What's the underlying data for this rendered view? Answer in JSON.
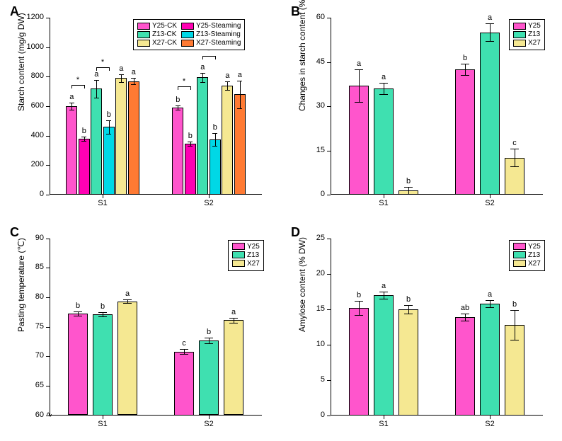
{
  "panels": [
    "A",
    "B",
    "C",
    "D"
  ],
  "panel_letter_fontsize": 18,
  "axis_label_fontsize": 12,
  "tick_fontsize": 11,
  "sig_fontsize": 11,
  "legend_fontsize": 10,
  "colors": {
    "Y25": "#ff55cc",
    "Y25_Steaming": "#ff00b3",
    "Z13": "#3fe0b0",
    "Z13_Steaming": "#00d8e6",
    "X27": "#f5e892",
    "X27_Steaming": "#ff7a33",
    "bar_border": "#000000",
    "axis": "#000000",
    "background": "#ffffff"
  },
  "axis_break_glyph": "∿",
  "A": {
    "ylabel": "Starch content (mg/g DW)",
    "ylim": [
      0,
      1200
    ],
    "ytick_step": 200,
    "categories": [
      "S1",
      "S2"
    ],
    "legend": [
      {
        "label": "Y25-CK",
        "color": "Y25"
      },
      {
        "label": "Y25-Steaming",
        "color": "Y25_Steaming"
      },
      {
        "label": "Z13-CK",
        "color": "Z13"
      },
      {
        "label": "Z13-Steaming",
        "color": "Z13_Steaming"
      },
      {
        "label": "X27-CK",
        "color": "X27"
      },
      {
        "label": "X27-Steaming",
        "color": "X27_Steaming"
      }
    ],
    "series_colors": [
      "Y25",
      "Y25_Steaming",
      "Z13",
      "Z13_Steaming",
      "X27",
      "X27_Steaming"
    ],
    "values": {
      "S1": [
        600,
        380,
        720,
        460,
        790,
        770
      ],
      "S2": [
        590,
        345,
        795,
        375,
        740,
        680
      ]
    },
    "errors": {
      "S1": [
        25,
        15,
        60,
        45,
        25,
        20
      ],
      "S2": [
        15,
        15,
        30,
        45,
        30,
        95
      ]
    },
    "letters": {
      "S1": [
        "a",
        "b",
        "a",
        "b",
        "a",
        "a"
      ],
      "S2": [
        "b",
        "b",
        "a",
        "b",
        "a",
        "a"
      ]
    },
    "sig_pairs": {
      "S1": [
        [
          0,
          1,
          "*"
        ],
        [
          2,
          3,
          "*"
        ]
      ],
      "S2": [
        [
          0,
          1,
          "*"
        ],
        [
          2,
          3,
          "*"
        ]
      ]
    },
    "bar_width": 0.9
  },
  "B": {
    "ylabel": "Changes in starch content (%)",
    "ylim": [
      0,
      60
    ],
    "ytick_step": 15,
    "categories": [
      "S1",
      "S2"
    ],
    "legend": [
      {
        "label": "Y25",
        "color": "Y25"
      },
      {
        "label": "Z13",
        "color": "Z13"
      },
      {
        "label": "X27",
        "color": "X27"
      }
    ],
    "series_colors": [
      "Y25",
      "Z13",
      "X27"
    ],
    "values": {
      "S1": [
        37,
        36,
        1.5
      ],
      "S2": [
        42.5,
        55,
        12.5
      ]
    },
    "errors": {
      "S1": [
        5.5,
        2,
        1.2
      ],
      "S2": [
        2,
        3,
        3
      ]
    },
    "letters": {
      "S1": [
        "a",
        "a",
        "b"
      ],
      "S2": [
        "b",
        "a",
        "c"
      ]
    },
    "bar_width": 0.8
  },
  "C": {
    "ylabel": "Pasting temperature (℃)",
    "ylim": [
      60,
      90
    ],
    "ytick_step": 5,
    "axis_break": true,
    "categories": [
      "S1",
      "S2"
    ],
    "legend": [
      {
        "label": "Y25",
        "color": "Y25"
      },
      {
        "label": "Z13",
        "color": "Z13"
      },
      {
        "label": "X27",
        "color": "X27"
      }
    ],
    "series_colors": [
      "Y25",
      "Z13",
      "X27"
    ],
    "values": {
      "S1": [
        77.2,
        77.1,
        79.3
      ],
      "S2": [
        70.8,
        72.7,
        76.1
      ]
    },
    "errors": {
      "S1": [
        0.35,
        0.35,
        0.3
      ],
      "S2": [
        0.45,
        0.5,
        0.45
      ]
    },
    "letters": {
      "S1": [
        "b",
        "b",
        "a"
      ],
      "S2": [
        "c",
        "b",
        "a"
      ]
    },
    "bar_width": 0.8
  },
  "D": {
    "ylabel": "Amylose content (% DW)",
    "ylim": [
      0,
      25
    ],
    "ytick_step": 5,
    "categories": [
      "S1",
      "S2"
    ],
    "legend": [
      {
        "label": "Y25",
        "color": "Y25"
      },
      {
        "label": "Z13",
        "color": "Z13"
      },
      {
        "label": "X27",
        "color": "X27"
      }
    ],
    "series_colors": [
      "Y25",
      "Z13",
      "X27"
    ],
    "values": {
      "S1": [
        15.2,
        17.0,
        15.0
      ],
      "S2": [
        13.9,
        15.8,
        12.8
      ]
    },
    "errors": {
      "S1": [
        1.0,
        0.5,
        0.6
      ],
      "S2": [
        0.5,
        0.5,
        2.1
      ]
    },
    "letters": {
      "S1": [
        "b",
        "a",
        "b"
      ],
      "S2": [
        "ab",
        "a",
        "b"
      ]
    },
    "bar_width": 0.8
  }
}
